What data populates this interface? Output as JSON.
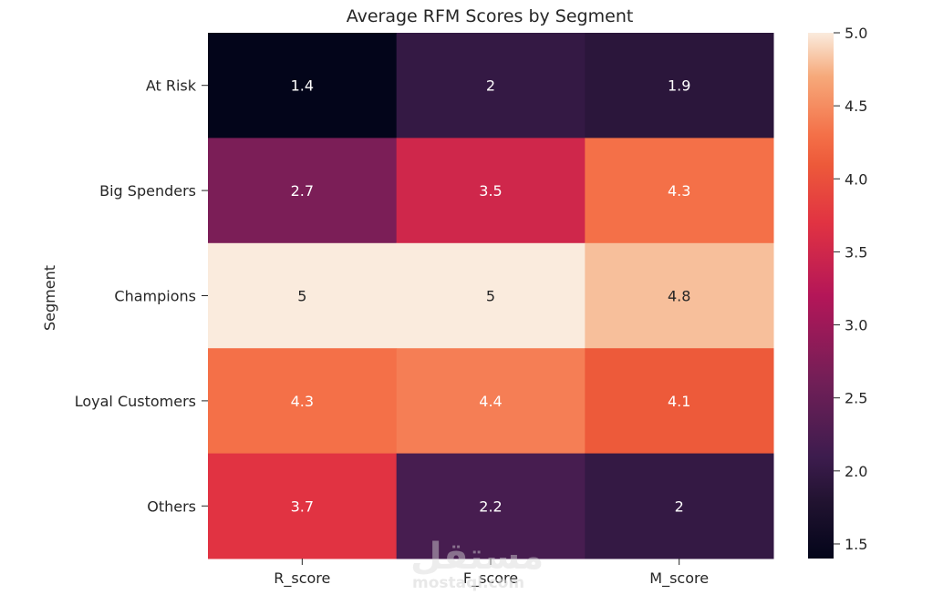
{
  "chart_data": {
    "type": "heatmap",
    "title": "Average RFM Scores by Segment",
    "xlabel": "",
    "ylabel": "Segment",
    "columns": [
      "R_score",
      "F_score",
      "M_score"
    ],
    "rows": [
      "At Risk",
      "Big Spenders",
      "Champions",
      "Loyal Customers",
      "Others"
    ],
    "values": [
      [
        1.4,
        2,
        1.9
      ],
      [
        2.7,
        3.5,
        4.3
      ],
      [
        5,
        5,
        4.8
      ],
      [
        4.3,
        4.4,
        4.1
      ],
      [
        3.7,
        2.2,
        2
      ]
    ],
    "annotations": [
      [
        "1.4",
        "2",
        "1.9"
      ],
      [
        "2.7",
        "3.5",
        "4.3"
      ],
      [
        "5",
        "5",
        "4.8"
      ],
      [
        "4.3",
        "4.4",
        "4.1"
      ],
      [
        "3.7",
        "2.2",
        "2"
      ]
    ],
    "colorbar": {
      "range": [
        1.4,
        5.0
      ],
      "ticks": [
        "1.5",
        "2.0",
        "2.5",
        "3.0",
        "3.5",
        "4.0",
        "4.5",
        "5.0"
      ],
      "colormap": "rocket"
    }
  },
  "watermark": {
    "arabic": "مستقل",
    "latin": "mostaql.com"
  }
}
